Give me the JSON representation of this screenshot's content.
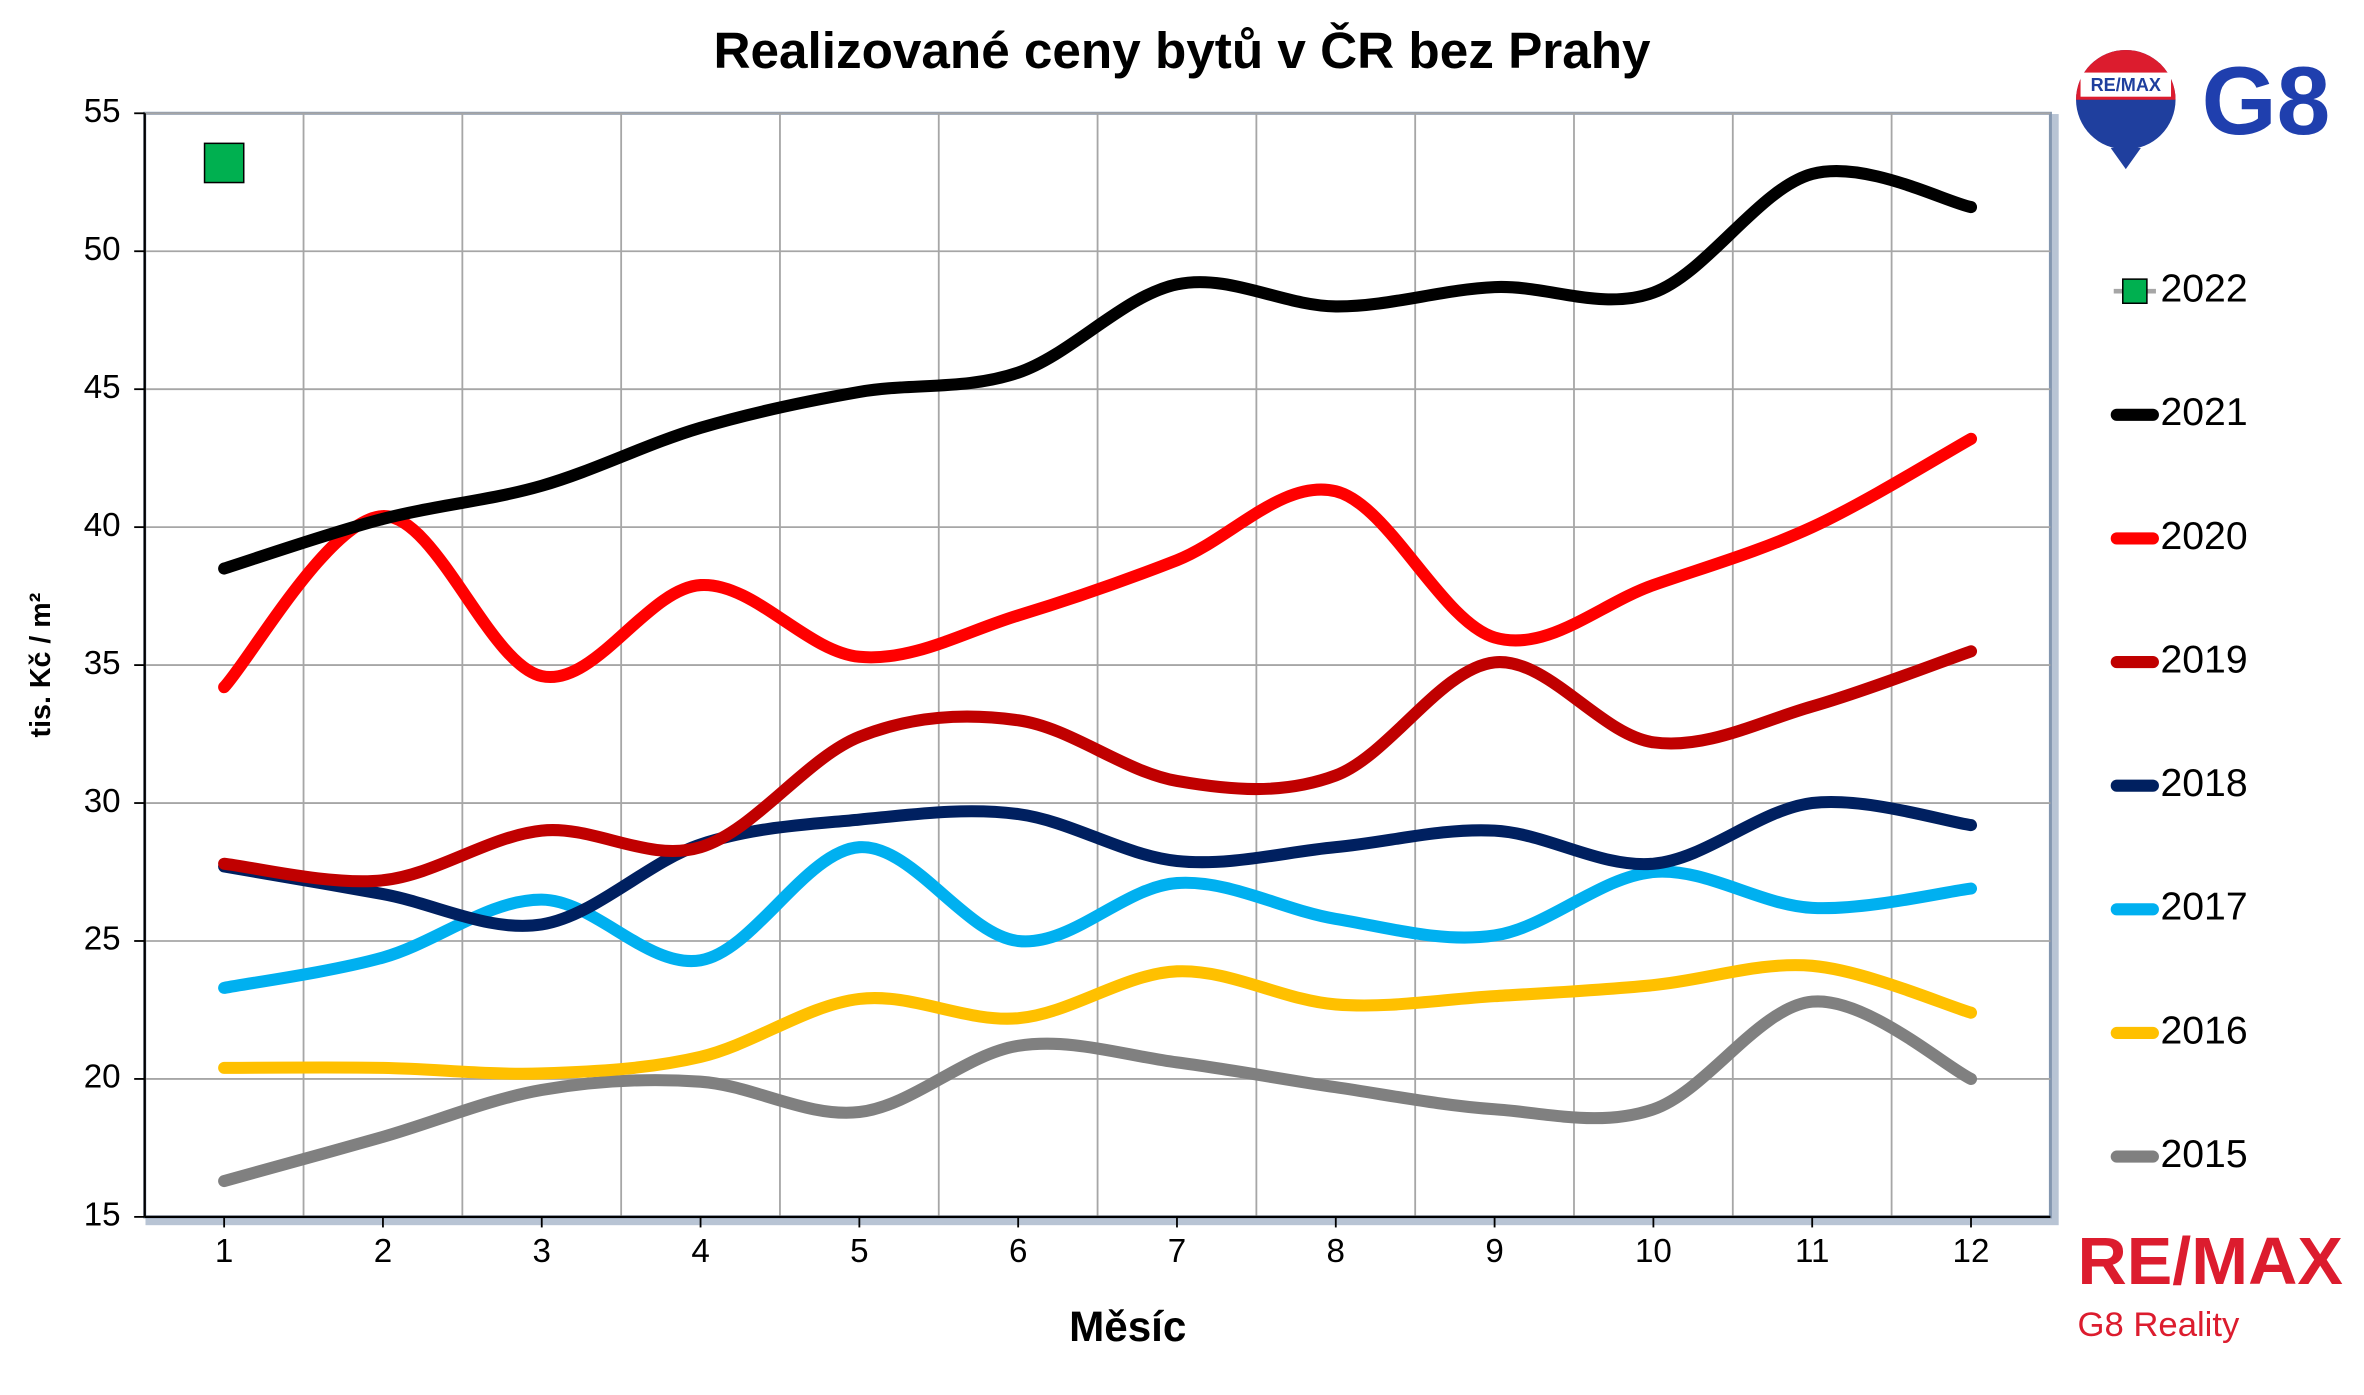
{
  "chart_data": {
    "type": "line",
    "title": "Realizované ceny bytů v ČR bez Prahy",
    "x_label": "Měsíc",
    "y_label": "tis. Kč / m²",
    "x": [
      1,
      2,
      3,
      4,
      5,
      6,
      7,
      8,
      9,
      10,
      11,
      12
    ],
    "xlim": [
      0.5,
      12.5
    ],
    "ylim": [
      15,
      55
    ],
    "yticks": [
      15,
      20,
      25,
      30,
      35,
      40,
      45,
      50,
      55
    ],
    "grid": true,
    "legend": "right",
    "series": [
      {
        "name": "2022",
        "color": "#00b050",
        "marker": "square",
        "values": [
          53.2,
          null,
          null,
          null,
          null,
          null,
          null,
          null,
          null,
          null,
          null,
          null
        ]
      },
      {
        "name": "2021",
        "color": "#000000",
        "values": [
          38.5,
          40.3,
          41.5,
          43.6,
          44.9,
          45.6,
          48.8,
          48.0,
          48.7,
          48.5,
          52.8,
          51.6
        ]
      },
      {
        "name": "2020",
        "color": "#ff0000",
        "values": [
          34.2,
          40.4,
          34.6,
          37.9,
          35.3,
          36.8,
          38.8,
          41.3,
          36.0,
          37.9,
          40.0,
          43.2
        ]
      },
      {
        "name": "2019",
        "color": "#c00000",
        "values": [
          27.8,
          27.2,
          29.0,
          28.4,
          32.4,
          33.0,
          30.8,
          31.0,
          35.1,
          32.2,
          33.5,
          35.5
        ]
      },
      {
        "name": "2018",
        "color": "#002060",
        "values": [
          27.7,
          26.7,
          25.6,
          28.5,
          29.4,
          29.6,
          27.9,
          28.4,
          29.0,
          27.8,
          30.0,
          29.2
        ]
      },
      {
        "name": "2017",
        "color": "#00b0f0",
        "values": [
          23.3,
          24.4,
          26.5,
          24.3,
          28.4,
          25.0,
          27.1,
          25.8,
          25.2,
          27.5,
          26.2,
          26.9
        ]
      },
      {
        "name": "2016",
        "color": "#ffc000",
        "values": [
          20.4,
          20.4,
          20.2,
          20.8,
          22.9,
          22.2,
          23.9,
          22.7,
          23.0,
          23.4,
          24.1,
          22.4
        ]
      },
      {
        "name": "2015",
        "color": "#808080",
        "values": [
          16.3,
          17.9,
          19.6,
          19.9,
          18.8,
          21.2,
          20.6,
          19.7,
          18.9,
          18.9,
          22.8,
          20.0
        ]
      }
    ]
  },
  "logo": {
    "balloon": "RE/MAX",
    "office": "G8",
    "brand": "RE/MAX",
    "company": "G8 Reality"
  }
}
